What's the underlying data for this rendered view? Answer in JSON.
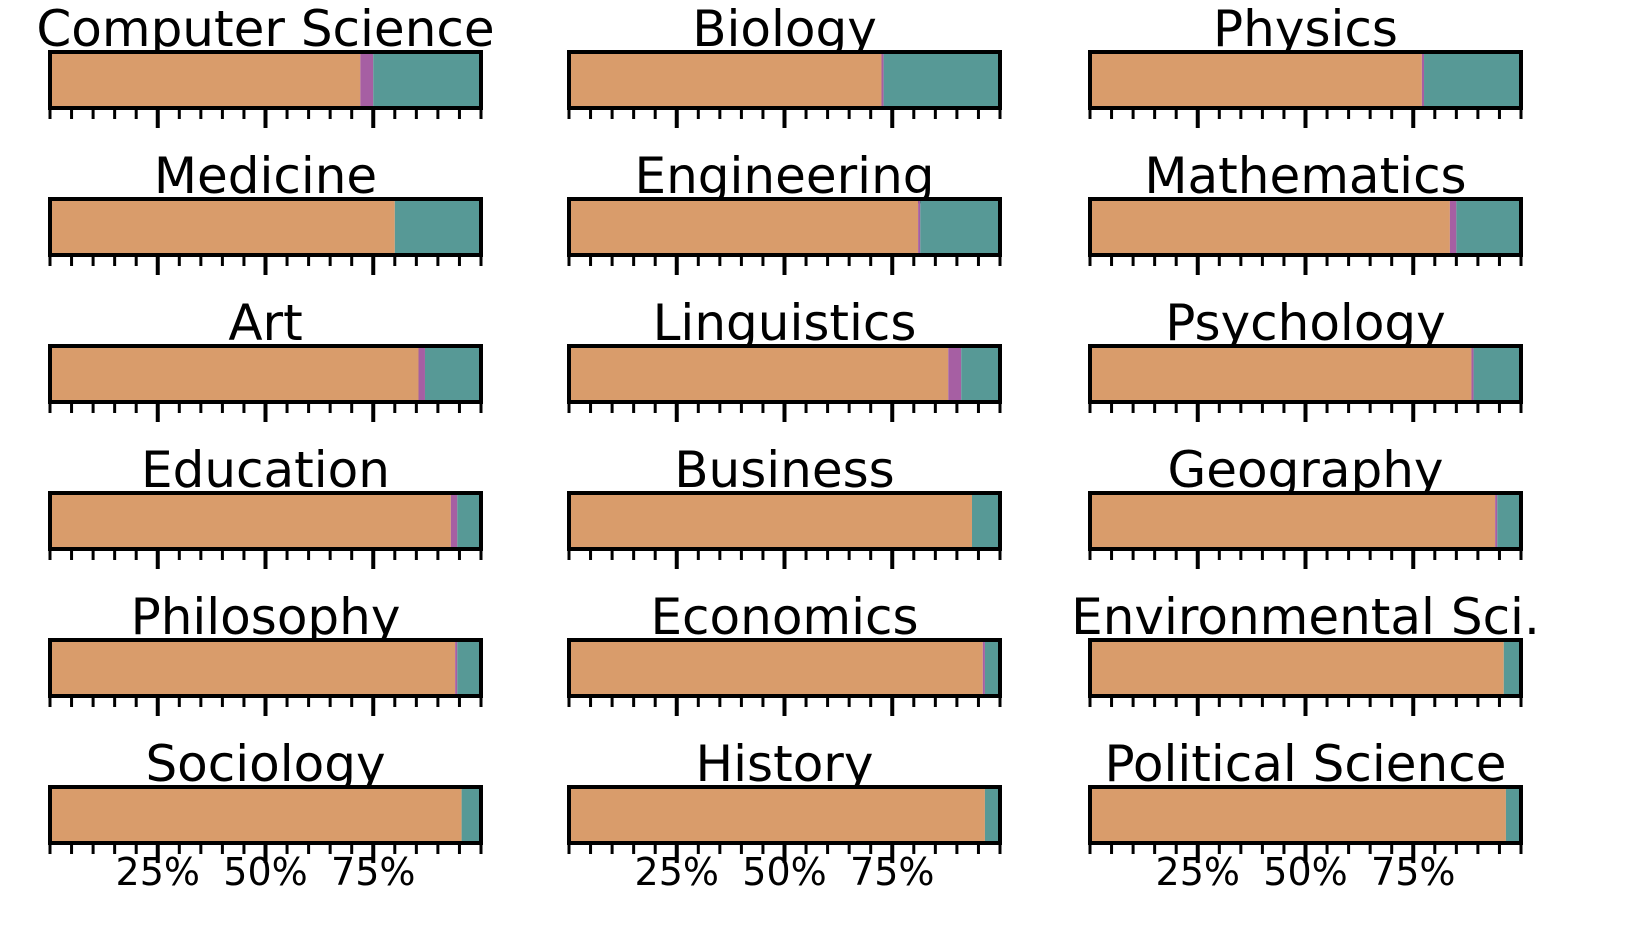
{
  "chart_data": {
    "type": "bar",
    "orientation": "horizontal-stacked-100",
    "colors": {
      "segment1": "#D99C6B",
      "segment2": "#A65FA3",
      "segment3": "#579996"
    },
    "grid": false,
    "legend": "none",
    "xlim": [
      0,
      100
    ],
    "x_tick_labels": [
      "25%",
      "50%",
      "75%"
    ],
    "x_tick_values": [
      25,
      50,
      75
    ],
    "panels": [
      {
        "title": "Computer Science",
        "values": [
          72,
          3,
          25
        ]
      },
      {
        "title": "Biology",
        "values": [
          72.5,
          0.5,
          27
        ]
      },
      {
        "title": "Physics",
        "values": [
          77,
          0.5,
          22.5
        ]
      },
      {
        "title": "Medicine",
        "values": [
          80,
          0,
          20
        ]
      },
      {
        "title": "Engineering",
        "values": [
          81,
          0.5,
          18.5
        ]
      },
      {
        "title": "Mathematics",
        "values": [
          83.5,
          1.5,
          15
        ]
      },
      {
        "title": "Art",
        "values": [
          85.5,
          1.5,
          13
        ]
      },
      {
        "title": "Linguistics",
        "values": [
          88,
          3,
          9
        ]
      },
      {
        "title": "Psychology",
        "values": [
          88.5,
          0.5,
          11
        ]
      },
      {
        "title": "Education",
        "values": [
          93,
          1.5,
          5.5
        ]
      },
      {
        "title": "Business",
        "values": [
          93.5,
          0,
          6.5
        ]
      },
      {
        "title": "Geography",
        "values": [
          94,
          0.5,
          5.5
        ]
      },
      {
        "title": "Philosophy",
        "values": [
          94,
          0.5,
          5.5
        ]
      },
      {
        "title": "Economics",
        "values": [
          96,
          0.5,
          3.5
        ]
      },
      {
        "title": "Environmental Sci.",
        "values": [
          96,
          0,
          4
        ]
      },
      {
        "title": "Sociology",
        "values": [
          95.5,
          0,
          4.5
        ]
      },
      {
        "title": "History",
        "values": [
          96.5,
          0,
          3.5
        ]
      },
      {
        "title": "Political Science",
        "values": [
          96.5,
          0,
          3.5
        ]
      }
    ]
  }
}
